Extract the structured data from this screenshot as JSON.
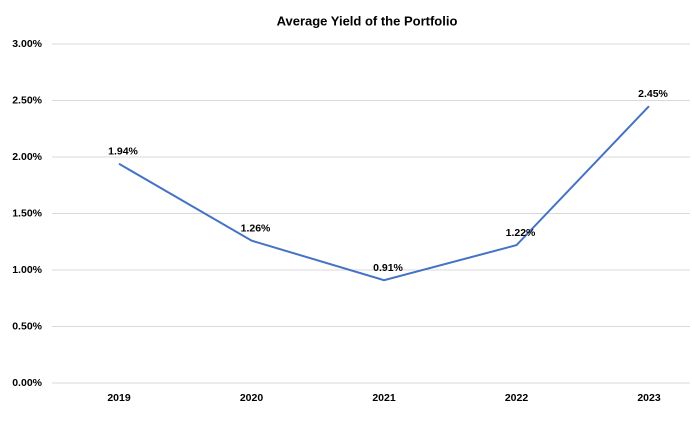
{
  "chart_data": {
    "type": "line",
    "title": "Average Yield of the Portfolio",
    "categories": [
      "2019",
      "2020",
      "2021",
      "2022",
      "2023"
    ],
    "series": [
      {
        "name": "Average Yield",
        "color": "#4472c4",
        "values": [
          1.94,
          1.26,
          0.91,
          1.22,
          2.45
        ],
        "value_labels": [
          "1.94%",
          "1.26%",
          "0.91%",
          "1.22%",
          "2.45%"
        ]
      }
    ],
    "ylim": [
      0,
      3
    ],
    "yticks": [
      {
        "value": 0,
        "label": "0.00%"
      },
      {
        "value": 0.5,
        "label": "0.50%"
      },
      {
        "value": 1,
        "label": "1.00%"
      },
      {
        "value": 1.5,
        "label": "1.50%"
      },
      {
        "value": 2,
        "label": "2.00%"
      },
      {
        "value": 2.5,
        "label": "2.50%"
      },
      {
        "value": 3,
        "label": "3.00%"
      }
    ],
    "grid": true
  }
}
